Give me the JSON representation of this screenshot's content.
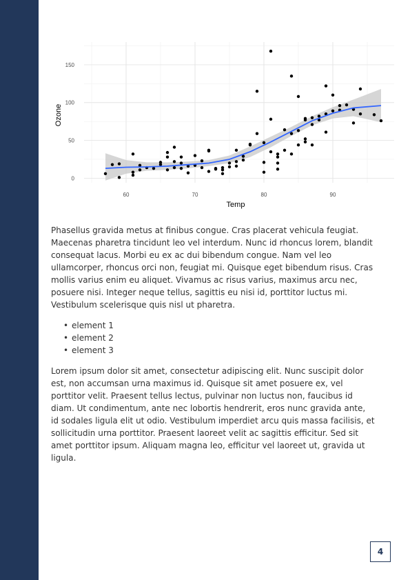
{
  "chart_data": {
    "type": "scatter",
    "xlabel": "Temp",
    "ylabel": "Ozone",
    "xlim": [
      53.9,
      98.9
    ],
    "ylim": [
      -6,
      180
    ],
    "xticks": [
      60,
      70,
      80,
      90
    ],
    "yticks": [
      0,
      50,
      100,
      150
    ],
    "grid": true,
    "smooth_color": "#3366ff",
    "band_color": "#c8c8c8",
    "points": [
      [
        57,
        6
      ],
      [
        58,
        18
      ],
      [
        59,
        1
      ],
      [
        59,
        19
      ],
      [
        61,
        32
      ],
      [
        61,
        8
      ],
      [
        61,
        4
      ],
      [
        62,
        11
      ],
      [
        62,
        17
      ],
      [
        63,
        14
      ],
      [
        64,
        13
      ],
      [
        65,
        21
      ],
      [
        65,
        18
      ],
      [
        66,
        11
      ],
      [
        66,
        28
      ],
      [
        66,
        34
      ],
      [
        67,
        22
      ],
      [
        67,
        41
      ],
      [
        67,
        14
      ],
      [
        68,
        20
      ],
      [
        68,
        28
      ],
      [
        68,
        13
      ],
      [
        69,
        16
      ],
      [
        69,
        7
      ],
      [
        70,
        30
      ],
      [
        70,
        17
      ],
      [
        71,
        14
      ],
      [
        71,
        23
      ],
      [
        72,
        36
      ],
      [
        72,
        37
      ],
      [
        72,
        9
      ],
      [
        73,
        13
      ],
      [
        73,
        12
      ],
      [
        74,
        11
      ],
      [
        74,
        14
      ],
      [
        74,
        6
      ],
      [
        75,
        15
      ],
      [
        75,
        20
      ],
      [
        76,
        22
      ],
      [
        76,
        37
      ],
      [
        76,
        16
      ],
      [
        77,
        24
      ],
      [
        77,
        29
      ],
      [
        78,
        45
      ],
      [
        78,
        44
      ],
      [
        79,
        115
      ],
      [
        79,
        59
      ],
      [
        80,
        8
      ],
      [
        80,
        21
      ],
      [
        80,
        47
      ],
      [
        81,
        168
      ],
      [
        81,
        78
      ],
      [
        81,
        35
      ],
      [
        82,
        12
      ],
      [
        82,
        32
      ],
      [
        82,
        28
      ],
      [
        82,
        20
      ],
      [
        83,
        64
      ],
      [
        83,
        37
      ],
      [
        84,
        135
      ],
      [
        84,
        32
      ],
      [
        84,
        59
      ],
      [
        85,
        108
      ],
      [
        85,
        63
      ],
      [
        85,
        44
      ],
      [
        86,
        79
      ],
      [
        86,
        77
      ],
      [
        86,
        48
      ],
      [
        86,
        52
      ],
      [
        87,
        71
      ],
      [
        87,
        80
      ],
      [
        87,
        44
      ],
      [
        88,
        77
      ],
      [
        88,
        82
      ],
      [
        89,
        122
      ],
      [
        89,
        85
      ],
      [
        89,
        61
      ],
      [
        90,
        110
      ],
      [
        90,
        89
      ],
      [
        91,
        90
      ],
      [
        91,
        96
      ],
      [
        92,
        97
      ],
      [
        93,
        91
      ],
      [
        93,
        73
      ],
      [
        94,
        118
      ],
      [
        94,
        85
      ],
      [
        96,
        84
      ],
      [
        97,
        76
      ]
    ],
    "smooth": [
      [
        57,
        13
      ],
      [
        60,
        14.5
      ],
      [
        63,
        15
      ],
      [
        66,
        16
      ],
      [
        69,
        18
      ],
      [
        72,
        20
      ],
      [
        75,
        25
      ],
      [
        78,
        35
      ],
      [
        81,
        48
      ],
      [
        84,
        62
      ],
      [
        87,
        76
      ],
      [
        90,
        86
      ],
      [
        93,
        93
      ],
      [
        97,
        96
      ]
    ],
    "band_upper": [
      [
        57,
        33
      ],
      [
        60,
        24
      ],
      [
        63,
        21
      ],
      [
        66,
        21
      ],
      [
        69,
        22
      ],
      [
        72,
        24
      ],
      [
        75,
        30
      ],
      [
        78,
        42
      ],
      [
        81,
        55
      ],
      [
        84,
        68
      ],
      [
        87,
        82
      ],
      [
        90,
        94
      ],
      [
        93,
        104
      ],
      [
        97,
        118
      ]
    ],
    "band_lower": [
      [
        57,
        -3
      ],
      [
        60,
        6
      ],
      [
        63,
        10
      ],
      [
        66,
        11
      ],
      [
        69,
        13
      ],
      [
        72,
        16
      ],
      [
        75,
        20
      ],
      [
        78,
        28
      ],
      [
        81,
        41
      ],
      [
        84,
        56
      ],
      [
        87,
        70
      ],
      [
        90,
        79
      ],
      [
        93,
        82
      ],
      [
        97,
        74
      ]
    ]
  },
  "paragraphs": {
    "p1": "Phasellus gravida metus at finibus congue. Cras placerat vehicula feugiat. Maecenas pharetra tincidunt leo vel interdum. Nunc id rhoncus lorem, blandit consequat lacus. Morbi eu ex ac dui bibendum congue. Nam vel leo ullamcorper, rhoncus orci non, feugiat mi. Quisque eget bibendum risus. Cras mollis varius enim eu aliquet. Vivamus ac risus varius, maximus arcu nec, posuere nisi. Integer neque tellus, sagittis eu nisi id, porttitor luctus mi. Vestibulum scelerisque quis nisl ut pharetra.",
    "p2": "Lorem ipsum dolor sit amet, consectetur adipiscing elit. Nunc suscipit dolor est, non accumsan urna maximus id. Quisque sit amet posuere ex, vel porttitor velit. Praesent tellus lectus, pulvinar non luctus non, faucibus id diam. Ut condimentum, ante nec lobortis hendrerit, eros nunc gravida ante, id sodales ligula elit ut odio. Vestibulum imperdiet arcu quis massa facilisis, et sollicitudin urna porttitor. Praesent laoreet velit ac sagittis efficitur. Sed sit amet porttitor ipsum. Aliquam magna leo, efficitur vel laoreet ut, gravida ut ligula."
  },
  "list": {
    "bullet": "•",
    "items": [
      "element 1",
      "element 2",
      "element 3"
    ]
  },
  "page_number": "4"
}
